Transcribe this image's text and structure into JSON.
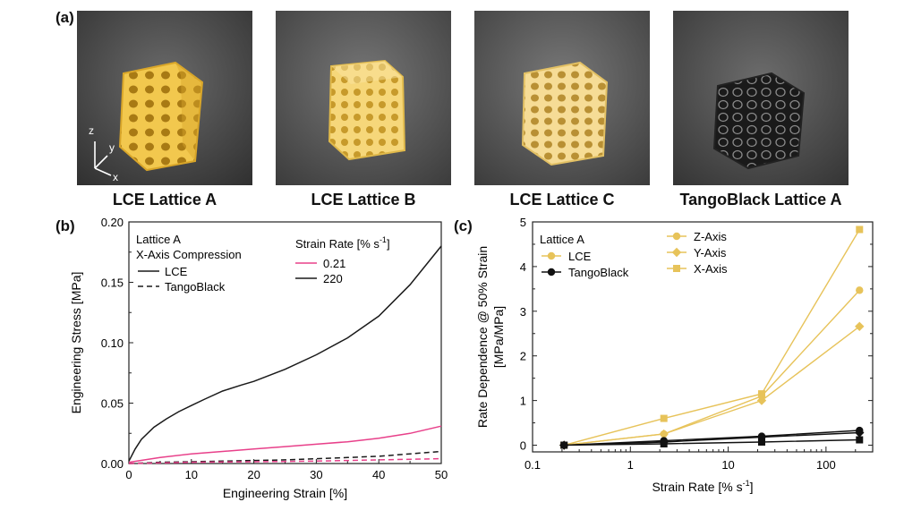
{
  "panels": {
    "a": "(a)",
    "b": "(b)",
    "c": "(c)"
  },
  "photos": [
    {
      "caption": "LCE Lattice A",
      "material": "lce",
      "axes": {
        "z": "z",
        "y": "y",
        "x": "x"
      }
    },
    {
      "caption": "LCE Lattice B",
      "material": "lce"
    },
    {
      "caption": "LCE Lattice C",
      "material": "lce"
    },
    {
      "caption": "TangoBlack Lattice A",
      "material": "tangoblack"
    }
  ],
  "colors": {
    "lce": "#e7c35a",
    "tangoblack": "#111111",
    "low_rate": "#e8408a",
    "high_rate": "#1a1a1a"
  },
  "chart_data": [
    {
      "type": "line",
      "xlabel": "Engineering Strain [%]",
      "ylabel": "Engineering Stress [MPa]",
      "xlim": [
        0,
        50
      ],
      "ylim": [
        0,
        0.2
      ],
      "xticks": [
        0,
        10,
        20,
        30,
        40,
        50
      ],
      "yticks": [
        0.0,
        0.05,
        0.1,
        0.15,
        0.2
      ],
      "ytick_labels": [
        "0.00",
        "0.05",
        "0.10",
        "0.15",
        "0.20"
      ],
      "legend_title_1": "Lattice A",
      "legend_title_2": "X-Axis Compression",
      "legend_material": [
        {
          "label": "LCE",
          "style": "solid"
        },
        {
          "label": "TangoBlack",
          "style": "dashed"
        }
      ],
      "legend_rate_title": "Strain Rate [% s",
      "legend_rate_sup": "-1",
      "legend_rate_suffix": "]",
      "legend_rate": [
        {
          "label": "0.21",
          "color": "#e8408a"
        },
        {
          "label": "220",
          "color": "#1a1a1a"
        }
      ],
      "series": [
        {
          "material": "LCE",
          "rate": "220",
          "style": "solid",
          "color": "#1a1a1a",
          "x": [
            0,
            1,
            2,
            4,
            6,
            8,
            10,
            12,
            15,
            18,
            20,
            25,
            30,
            35,
            40,
            45,
            50
          ],
          "y": [
            0.002,
            0.012,
            0.02,
            0.03,
            0.037,
            0.043,
            0.048,
            0.053,
            0.06,
            0.065,
            0.068,
            0.078,
            0.09,
            0.104,
            0.122,
            0.148,
            0.18
          ]
        },
        {
          "material": "LCE",
          "rate": "0.21",
          "style": "solid",
          "color": "#e8408a",
          "x": [
            0,
            5,
            10,
            15,
            20,
            25,
            30,
            35,
            40,
            45,
            50
          ],
          "y": [
            0.001,
            0.005,
            0.008,
            0.01,
            0.012,
            0.014,
            0.016,
            0.018,
            0.021,
            0.025,
            0.031
          ]
        },
        {
          "material": "TangoBlack",
          "rate": "220",
          "style": "dashed",
          "color": "#1a1a1a",
          "x": [
            0,
            5,
            10,
            15,
            20,
            25,
            30,
            35,
            40,
            45,
            50
          ],
          "y": [
            0.0,
            0.001,
            0.0015,
            0.002,
            0.0025,
            0.003,
            0.004,
            0.005,
            0.006,
            0.008,
            0.01
          ]
        },
        {
          "material": "TangoBlack",
          "rate": "0.21",
          "style": "dashed",
          "color": "#e8408a",
          "x": [
            0,
            10,
            20,
            30,
            40,
            50
          ],
          "y": [
            0.0,
            0.001,
            0.0015,
            0.002,
            0.003,
            0.004
          ]
        }
      ]
    },
    {
      "type": "line",
      "xlabel_main": "Strain Rate [% s",
      "xlabel_sup": "-1",
      "xlabel_suffix": "]",
      "ylabel_1": "Rate Dependence @ 50% Strain",
      "ylabel_2": "[MPa/MPa]",
      "xscale": "log",
      "xlim": [
        0.1,
        300
      ],
      "ylim": [
        -0.15,
        5
      ],
      "xticks": [
        0.1,
        1,
        10,
        100
      ],
      "xtick_labels": [
        "0.1",
        "1",
        "10",
        "100"
      ],
      "yticks": [
        0,
        1,
        2,
        3,
        4,
        5
      ],
      "ytick_labels": [
        "0",
        "1",
        "2",
        "3",
        "4",
        "5"
      ],
      "legend_title": "Lattice A",
      "legend_material": [
        {
          "label": "LCE",
          "color": "#e7c35a"
        },
        {
          "label": "TangoBlack",
          "color": "#111111"
        }
      ],
      "legend_axes": [
        {
          "label": "Z-Axis",
          "marker": "circle"
        },
        {
          "label": "Y-Axis",
          "marker": "diamond"
        },
        {
          "label": "X-Axis",
          "marker": "square"
        }
      ],
      "series": [
        {
          "material": "LCE",
          "axis": "Z-Axis",
          "marker": "circle",
          "color": "#e7c35a",
          "x": [
            0.21,
            2.2,
            22,
            220
          ],
          "y": [
            0,
            0.25,
            1.1,
            3.47
          ]
        },
        {
          "material": "LCE",
          "axis": "Y-Axis",
          "marker": "diamond",
          "color": "#e7c35a",
          "x": [
            0.21,
            2.2,
            22,
            220
          ],
          "y": [
            0,
            0.25,
            1.0,
            2.66
          ]
        },
        {
          "material": "LCE",
          "axis": "X-Axis",
          "marker": "square",
          "color": "#e7c35a",
          "x": [
            0.21,
            2.2,
            22,
            220
          ],
          "y": [
            0,
            0.6,
            1.15,
            4.83
          ]
        },
        {
          "material": "TangoBlack",
          "axis": "Z-Axis",
          "marker": "circle",
          "color": "#111111",
          "x": [
            0.21,
            2.2,
            22,
            220
          ],
          "y": [
            0,
            0.1,
            0.2,
            0.33
          ]
        },
        {
          "material": "TangoBlack",
          "axis": "Y-Axis",
          "marker": "diamond",
          "color": "#111111",
          "x": [
            0.21,
            2.2,
            22,
            220
          ],
          "y": [
            0,
            0.07,
            0.18,
            0.28
          ]
        },
        {
          "material": "TangoBlack",
          "axis": "X-Axis",
          "marker": "square",
          "color": "#111111",
          "x": [
            0.21,
            2.2,
            22,
            220
          ],
          "y": [
            0,
            0.03,
            0.07,
            0.12
          ]
        }
      ]
    }
  ]
}
